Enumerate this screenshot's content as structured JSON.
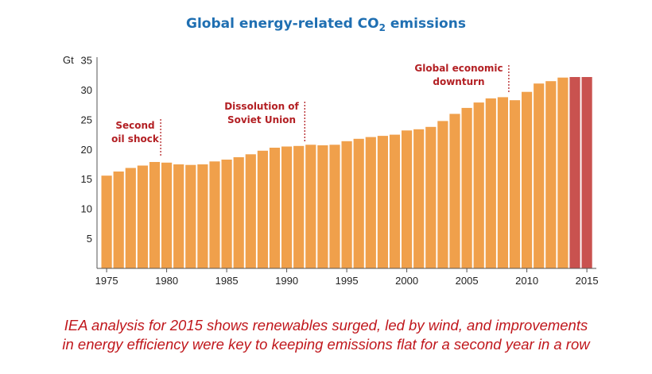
{
  "chart_data": {
    "type": "bar",
    "title_main": "Global energy-related CO",
    "title_sub": "2",
    "title_end": " emissions",
    "ylabel": "Gt",
    "ylim": [
      0,
      35
    ],
    "y_ticks": [
      5,
      10,
      15,
      20,
      25,
      30,
      35
    ],
    "x_tick_labels": [
      "1975",
      "1980",
      "1985",
      "1990",
      "1995",
      "2000",
      "2005",
      "2010",
      "2015"
    ],
    "categories": [
      1975,
      1976,
      1977,
      1978,
      1979,
      1980,
      1981,
      1982,
      1983,
      1984,
      1985,
      1986,
      1987,
      1988,
      1989,
      1990,
      1991,
      1992,
      1993,
      1994,
      1995,
      1996,
      1997,
      1998,
      1999,
      2000,
      2001,
      2002,
      2003,
      2004,
      2005,
      2006,
      2007,
      2008,
      2009,
      2010,
      2011,
      2012,
      2013,
      2014,
      2015
    ],
    "values": [
      15.6,
      16.3,
      16.9,
      17.3,
      17.9,
      17.8,
      17.5,
      17.4,
      17.5,
      18.0,
      18.3,
      18.7,
      19.2,
      19.8,
      20.3,
      20.5,
      20.6,
      20.8,
      20.7,
      20.8,
      21.4,
      21.8,
      22.1,
      22.3,
      22.5,
      23.2,
      23.4,
      23.8,
      24.8,
      26.0,
      27.0,
      27.9,
      28.6,
      28.8,
      28.3,
      29.7,
      31.1,
      31.5,
      32.1,
      32.2,
      32.2
    ],
    "highlight_years": [
      2014,
      2015
    ],
    "colors": {
      "bar": "#f0a04b",
      "highlight": "#c9524f",
      "annotation": "#b32024",
      "title": "#1f6fb2",
      "caption": "#c0171c"
    },
    "annotations": [
      {
        "lines": [
          "Second",
          "oil shock"
        ],
        "year": 1979.5
      },
      {
        "lines": [
          "Dissolution of",
          "Soviet Union"
        ],
        "year": 1991.5
      },
      {
        "lines": [
          "Global economic",
          "downturn"
        ],
        "year": 2008.5
      }
    ],
    "grid": false
  },
  "caption": {
    "line1": "IEA analysis for 2015 shows renewables surged, led by wind, and improvements",
    "line2": "in energy efficiency were key to keeping emissions flat for a second year in a row"
  }
}
